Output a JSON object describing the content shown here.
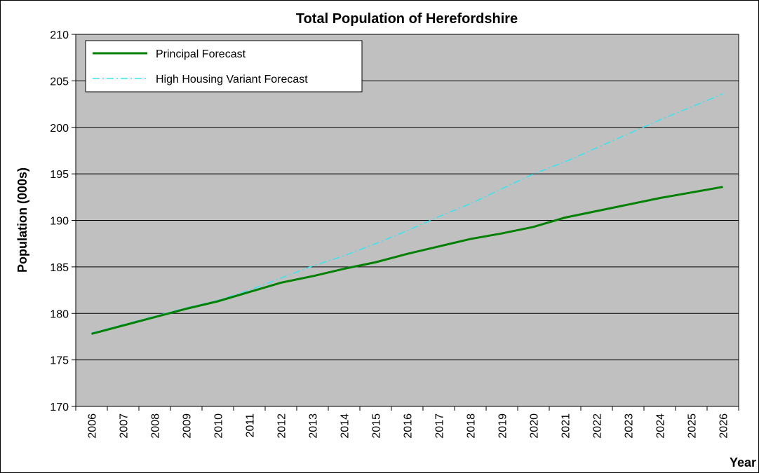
{
  "chart_data": {
    "type": "line",
    "title": "Total Population of Herefordshire",
    "x_label": "Year",
    "y_label": "Population (000s)",
    "categories": [
      "2006",
      "2007",
      "2008",
      "2009",
      "2010",
      "2011",
      "2012",
      "2013",
      "2014",
      "2015",
      "2016",
      "2017",
      "2018",
      "2019",
      "2020",
      "2021",
      "2022",
      "2023",
      "2024",
      "2025",
      "2026"
    ],
    "series": [
      {
        "name": "Principal Forecast",
        "color": "#008000",
        "dash": "solid",
        "values": [
          177.8,
          178.7,
          179.6,
          180.5,
          181.3,
          182.3,
          183.3,
          184.0,
          184.8,
          185.5,
          186.4,
          187.2,
          188.0,
          188.6,
          189.3,
          190.3,
          191.0,
          191.7,
          192.4,
          193.0,
          193.6
        ]
      },
      {
        "name": "High Housing Variant Forecast",
        "color": "#33e6f0",
        "dash": "dashdot",
        "values": [
          177.9,
          178.8,
          179.7,
          180.6,
          181.4,
          182.5,
          183.8,
          185.1,
          186.2,
          187.5,
          188.9,
          190.4,
          191.8,
          193.4,
          195.0,
          196.3,
          197.8,
          199.3,
          200.8,
          202.2,
          203.6
        ]
      }
    ],
    "ylim": [
      170,
      210
    ],
    "yticks": [
      170,
      175,
      180,
      185,
      190,
      195,
      200,
      205,
      210
    ],
    "grid": true,
    "legend": "top-left"
  }
}
